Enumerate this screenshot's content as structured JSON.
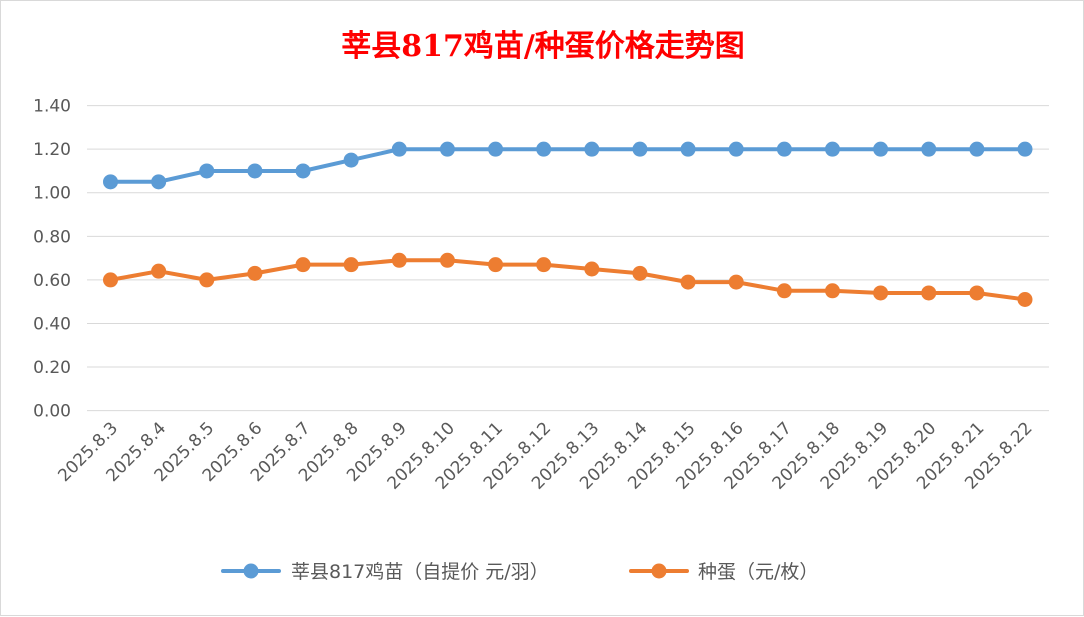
{
  "chart_data": {
    "type": "line",
    "title": "莘县817鸡苗/种蛋价格走势图",
    "title_color": "#ff0000",
    "categories": [
      "2025.8.3",
      "2025.8.4",
      "2025.8.5",
      "2025.8.6",
      "2025.8.7",
      "2025.8.8",
      "2025.8.9",
      "2025.8.10",
      "2025.8.11",
      "2025.8.12",
      "2025.8.13",
      "2025.8.14",
      "2025.8.15",
      "2025.8.16",
      "2025.8.17",
      "2025.8.18",
      "2025.8.19",
      "2025.8.20",
      "2025.8.21",
      "2025.8.22"
    ],
    "y_ticks": [
      "0.00",
      "0.20",
      "0.40",
      "0.60",
      "0.80",
      "1.00",
      "1.20",
      "1.40"
    ],
    "ylim": [
      0,
      1.4
    ],
    "grid": true,
    "legend_position": "bottom",
    "series": [
      {
        "name": "莘县817鸡苗（自提价 元/羽）",
        "color": "#5b9bd5",
        "values": [
          1.05,
          1.05,
          1.1,
          1.1,
          1.1,
          1.15,
          1.2,
          1.2,
          1.2,
          1.2,
          1.2,
          1.2,
          1.2,
          1.2,
          1.2,
          1.2,
          1.2,
          1.2,
          1.2,
          1.2
        ]
      },
      {
        "name": "种蛋（元/枚）",
        "color": "#ed7d31",
        "values": [
          0.6,
          0.64,
          0.6,
          0.63,
          0.67,
          0.67,
          0.69,
          0.69,
          0.67,
          0.67,
          0.65,
          0.63,
          0.59,
          0.59,
          0.55,
          0.55,
          0.54,
          0.54,
          0.54,
          0.51
        ]
      }
    ]
  }
}
